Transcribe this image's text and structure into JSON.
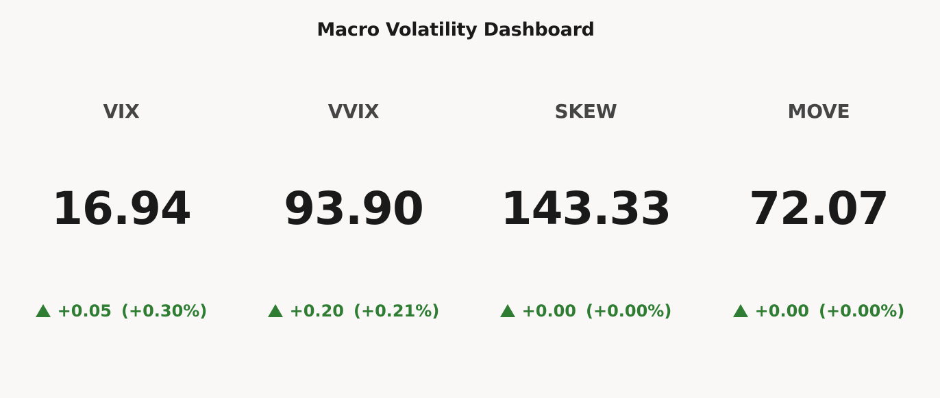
{
  "dashboard": {
    "title": "Macro Volatility Dashboard"
  },
  "colors": {
    "background": "#f9f8f6",
    "positive": "#2e7d32",
    "label": "#454545",
    "value": "#1a1a1a"
  },
  "indices": [
    {
      "name": "VIX",
      "value": "16.94",
      "change": "+0.05",
      "change_pct": "(+0.30%)",
      "direction_icon": "triangle-up-icon"
    },
    {
      "name": "VVIX",
      "value": "93.90",
      "change": "+0.20",
      "change_pct": "(+0.21%)",
      "direction_icon": "triangle-up-icon"
    },
    {
      "name": "SKEW",
      "value": "143.33",
      "change": "+0.00",
      "change_pct": "(+0.00%)",
      "direction_icon": "triangle-up-icon"
    },
    {
      "name": "MOVE",
      "value": "72.07",
      "change": "+0.00",
      "change_pct": "(+0.00%)",
      "direction_icon": "triangle-up-icon"
    }
  ]
}
